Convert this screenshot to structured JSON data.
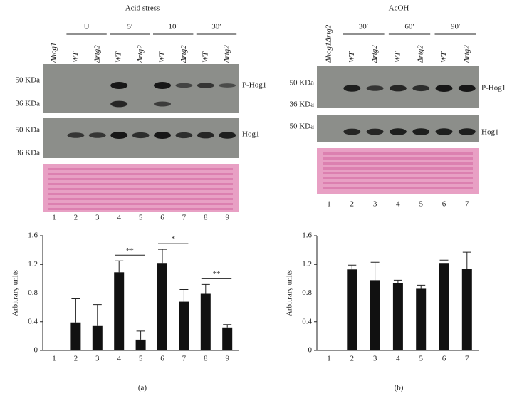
{
  "panels": [
    {
      "title": "Acid stress",
      "groups": [
        "U",
        "5′",
        "10′",
        "30′"
      ],
      "lanes": [
        "Δhog1",
        "WT",
        "Δrtg2",
        "WT",
        "Δrtg2",
        "WT",
        "Δrtg2",
        "WT",
        "Δrtg2"
      ],
      "blots": [
        {
          "markers": [
            "50 KDa",
            "36 KDa"
          ],
          "label": "P-Hog1"
        },
        {
          "markers": [
            "50 KDa",
            "36 KDa"
          ],
          "label": "Hog1"
        }
      ],
      "lane_numbers": [
        "1",
        "2",
        "3",
        "4",
        "5",
        "6",
        "7",
        "8",
        "9"
      ],
      "caption": "(a)"
    },
    {
      "title": "AcOH",
      "groups": [
        "30′",
        "60′",
        "90′"
      ],
      "lanes": [
        "Δhog1Δrtg2",
        "WT",
        "Δrtg2",
        "WT",
        "Δrtg2",
        "WT",
        "Δrtg2"
      ],
      "blots": [
        {
          "markers": [
            "50 KDa",
            "36 KDa"
          ],
          "label": "P-Hog1"
        },
        {
          "markers": [
            "50 KDa"
          ],
          "label": "Hog1"
        }
      ],
      "lane_numbers": [
        "1",
        "2",
        "3",
        "4",
        "5",
        "6",
        "7"
      ],
      "caption": "(b)"
    }
  ],
  "chart_data": [
    {
      "type": "bar",
      "ylabel": "Arbitrary units",
      "categories": [
        "1",
        "2",
        "3",
        "4",
        "5",
        "6",
        "7",
        "8",
        "9"
      ],
      "values": [
        0,
        0.39,
        0.34,
        1.09,
        0.15,
        1.22,
        0.68,
        0.79,
        0.32
      ],
      "errors": [
        0,
        0.33,
        0.3,
        0.16,
        0.12,
        0.19,
        0.17,
        0.13,
        0.04
      ],
      "color": "#111111",
      "ylim": [
        0,
        1.6
      ],
      "yticks": [
        0,
        0.4,
        0.8,
        1.2,
        1.6
      ],
      "annotations": [
        {
          "text": "**",
          "between": [
            "4",
            "5"
          ]
        },
        {
          "text": "*",
          "between": [
            "6",
            "7"
          ]
        },
        {
          "text": "**",
          "between": [
            "8",
            "9"
          ]
        }
      ]
    },
    {
      "type": "bar",
      "ylabel": "Arbitrary units",
      "categories": [
        "1",
        "2",
        "3",
        "4",
        "5",
        "6",
        "7"
      ],
      "values": [
        0,
        1.13,
        0.98,
        0.94,
        0.86,
        1.22,
        1.14
      ],
      "errors": [
        0,
        0.06,
        0.25,
        0.04,
        0.05,
        0.04,
        0.23
      ],
      "color": "#111111",
      "ylim": [
        0,
        1.6
      ],
      "yticks": [
        0,
        0.4,
        0.8,
        1.2,
        1.6
      ]
    }
  ]
}
